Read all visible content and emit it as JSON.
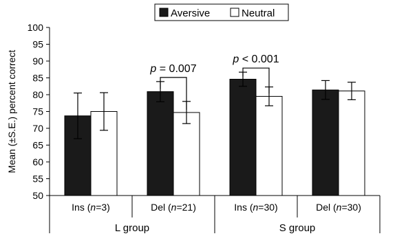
{
  "chart_data": {
    "type": "bar",
    "ylabel": "Mean (±S.E.) percent correct",
    "ylim": [
      50,
      100
    ],
    "yticks": [
      50,
      55,
      60,
      65,
      70,
      75,
      80,
      85,
      90,
      95,
      100
    ],
    "grid": false,
    "legend_position": "top-center",
    "categories": [
      {
        "pre": "Ins (",
        "ital": "n",
        "post": "=3)"
      },
      {
        "pre": "Del (",
        "ital": "n",
        "post": "=21)"
      },
      {
        "pre": "Ins (",
        "ital": "n",
        "post": "=30)"
      },
      {
        "pre": "Del (",
        "ital": "n",
        "post": "=30)"
      }
    ],
    "groups": [
      "L group",
      "S group"
    ],
    "series": [
      {
        "name": "Aversive",
        "color": "#1a1a1a",
        "values": [
          73.7,
          80.9,
          84.6,
          81.4
        ],
        "errors": [
          6.8,
          3.0,
          2.1,
          2.8
        ]
      },
      {
        "name": "Neutral",
        "color": "#ffffff",
        "values": [
          75.0,
          74.7,
          79.5,
          81.1
        ],
        "errors": [
          5.6,
          3.3,
          2.8,
          2.6
        ]
      }
    ],
    "annotations": [
      {
        "category": 1,
        "ital": "p",
        "rest": " = 0.007"
      },
      {
        "category": 2,
        "ital": "p",
        "rest": " < 0.001"
      }
    ]
  }
}
